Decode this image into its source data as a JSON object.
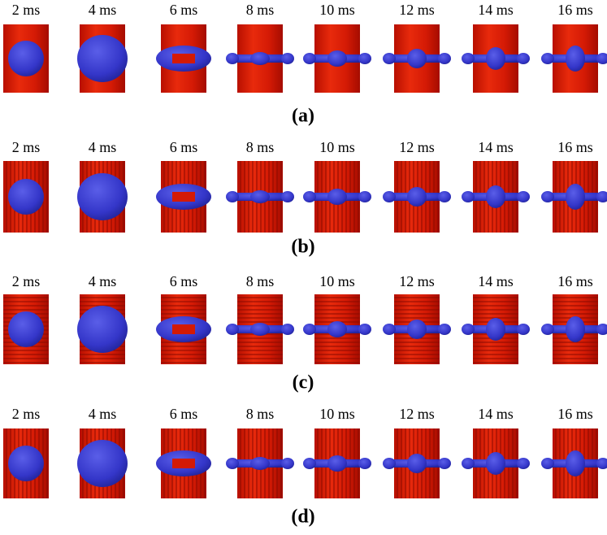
{
  "panels": [
    {
      "label": "(a)",
      "frames": [
        "2 ms",
        "4 ms",
        "6 ms",
        "8 ms",
        "10 ms",
        "12 ms",
        "14 ms",
        "16 ms"
      ]
    },
    {
      "label": "(b)",
      "frames": [
        "2 ms",
        "4 ms",
        "6 ms",
        "8 ms",
        "10 ms",
        "12 ms",
        "14 ms",
        "16 ms"
      ]
    },
    {
      "label": "(c)",
      "frames": [
        "2 ms",
        "4 ms",
        "6 ms",
        "8 ms",
        "10 ms",
        "12 ms",
        "14 ms",
        "16 ms"
      ]
    },
    {
      "label": "(d)",
      "frames": [
        "2 ms",
        "4 ms",
        "6 ms",
        "8 ms",
        "10 ms",
        "12 ms",
        "14 ms",
        "16 ms"
      ]
    }
  ]
}
